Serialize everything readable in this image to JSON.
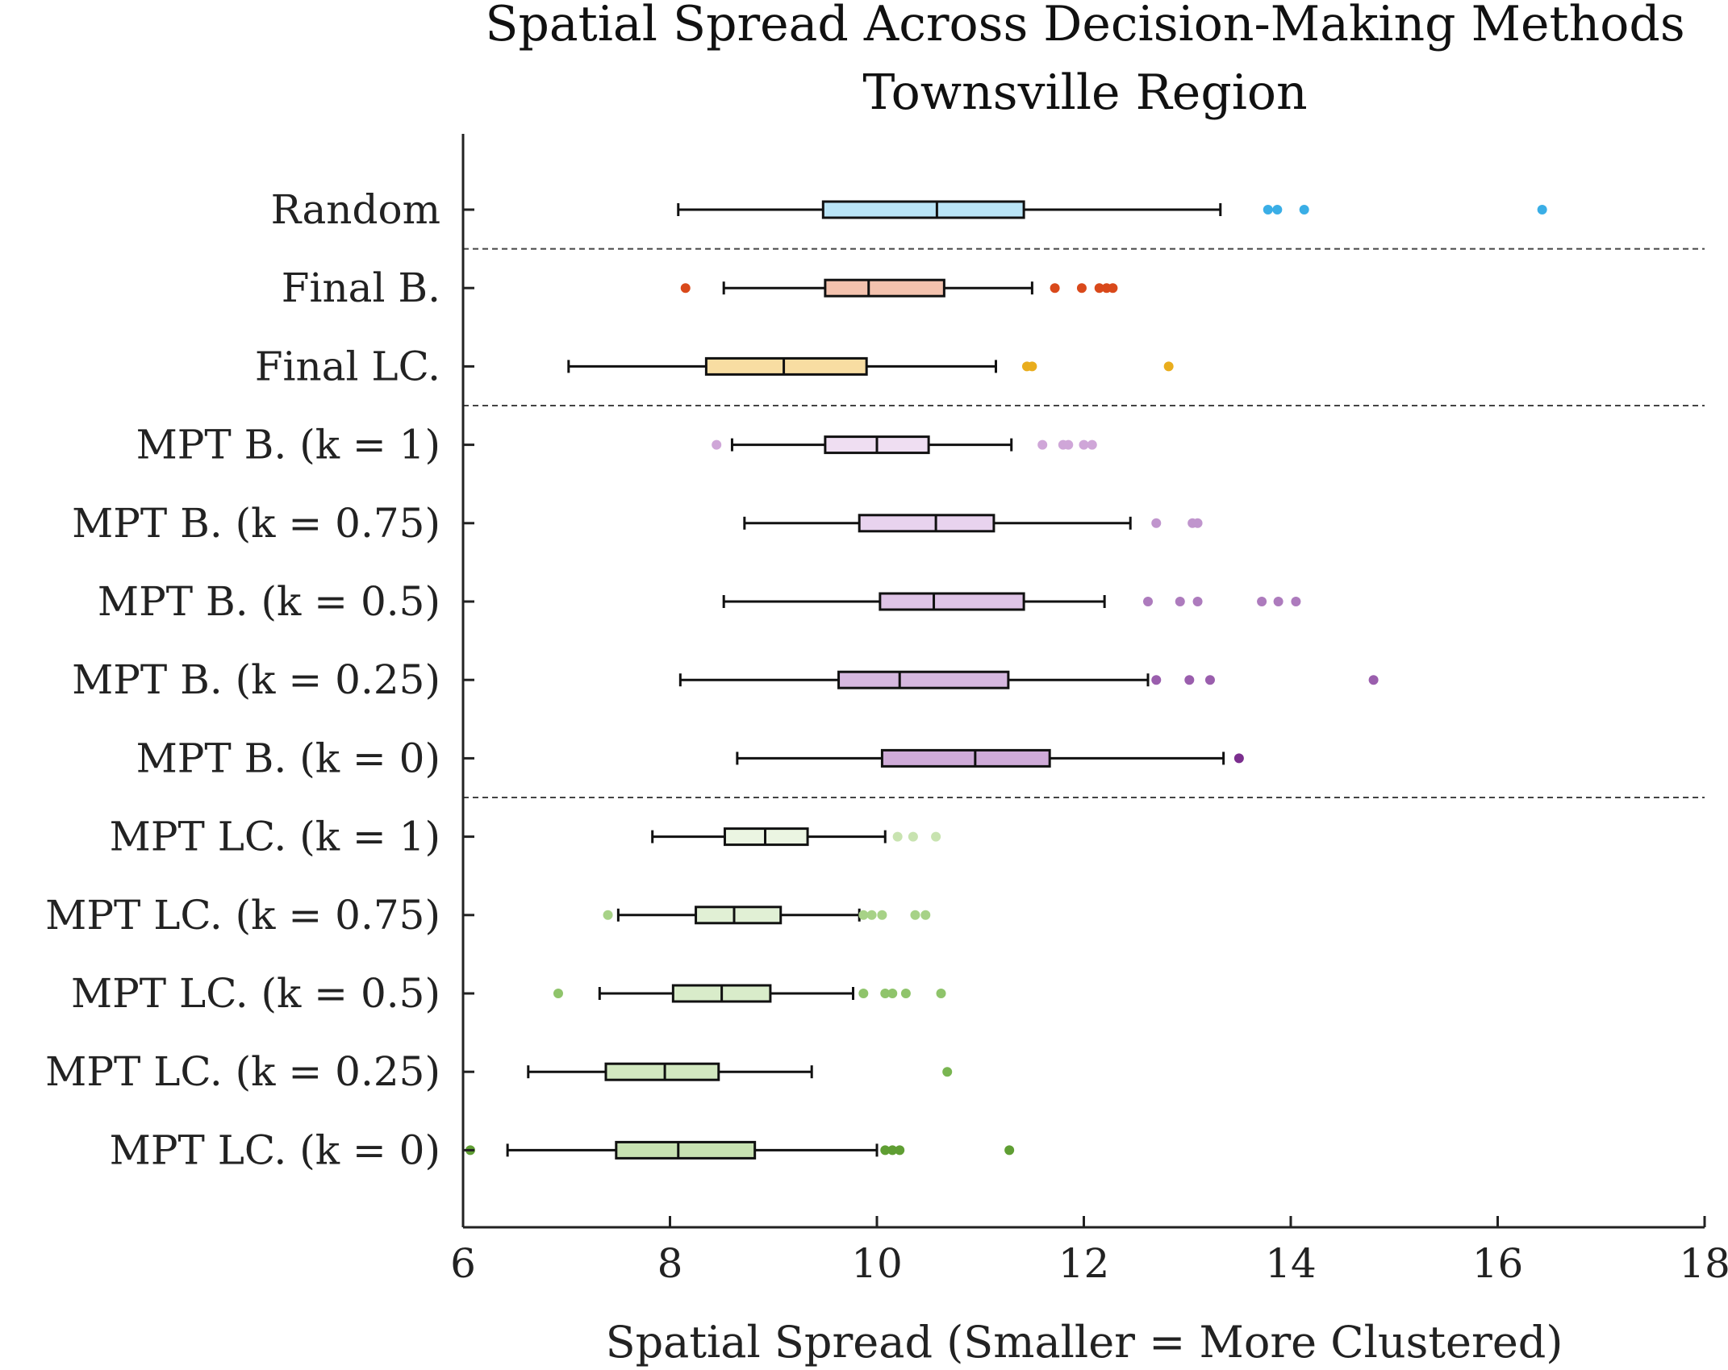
{
  "chart_data": {
    "type": "boxplot",
    "title": "Spatial Spread Across Decision-Making Methods",
    "subtitle": "Townsville Region",
    "xlabel": "Spatial Spread (Smaller = More Clustered)",
    "xlim": [
      6,
      18
    ],
    "xticks": [
      "6",
      "8",
      "10",
      "12",
      "14",
      "16",
      "18"
    ],
    "orientation": "horizontal",
    "grid": false,
    "group_separators_after": [
      "Random",
      "Final LC.",
      "MPT B. (k = 0)"
    ],
    "series": [
      {
        "category": "Random",
        "color": "#3aaee6",
        "fill": "#b9e4f6",
        "whisker_low": 8.08,
        "q1": 9.48,
        "median": 10.58,
        "q3": 11.42,
        "whisker_high": 13.32,
        "outliers": [
          13.78,
          13.87,
          14.13,
          16.43
        ]
      },
      {
        "category": "Final B.",
        "color": "#d9491b",
        "fill": "#f3c2ae",
        "whisker_low": 8.52,
        "q1": 9.5,
        "median": 9.92,
        "q3": 10.65,
        "whisker_high": 11.5,
        "outliers": [
          8.15,
          11.72,
          11.98,
          12.15,
          12.22,
          12.28
        ]
      },
      {
        "category": "Final LC.",
        "color": "#e9ad1d",
        "fill": "#f8ddA2",
        "whisker_low": 7.02,
        "q1": 8.35,
        "median": 9.1,
        "q3": 9.9,
        "whisker_high": 11.15,
        "outliers": [
          11.45,
          11.5,
          12.82
        ]
      },
      {
        "category": "MPT B. (k = 1)",
        "color": "#cfa6d8",
        "fill": "#efdef2",
        "whisker_low": 8.6,
        "q1": 9.5,
        "median": 10.0,
        "q3": 10.5,
        "whisker_high": 11.3,
        "outliers": [
          8.45,
          11.6,
          11.8,
          11.85,
          12.0,
          12.08
        ]
      },
      {
        "category": "MPT B. (k = 0.75)",
        "color": "#c095cd",
        "fill": "#e8d3ee",
        "whisker_low": 8.72,
        "q1": 9.83,
        "median": 10.57,
        "q3": 11.13,
        "whisker_high": 12.45,
        "outliers": [
          12.7,
          13.05,
          13.1
        ]
      },
      {
        "category": "MPT B. (k = 0.5)",
        "color": "#ad7bbd",
        "fill": "#dfc4e7",
        "whisker_low": 8.52,
        "q1": 10.03,
        "median": 10.55,
        "q3": 11.42,
        "whisker_high": 12.2,
        "outliers": [
          12.62,
          12.93,
          13.1,
          13.72,
          13.88,
          14.05
        ]
      },
      {
        "category": "MPT B. (k = 0.25)",
        "color": "#9a5ead",
        "fill": "#d6b8df",
        "whisker_low": 8.1,
        "q1": 9.63,
        "median": 10.22,
        "q3": 11.27,
        "whisker_high": 12.62,
        "outliers": [
          12.7,
          13.02,
          13.22,
          14.8
        ]
      },
      {
        "category": "MPT B. (k = 0)",
        "color": "#7b2e8e",
        "fill": "#cfabd8",
        "whisker_low": 8.65,
        "q1": 10.05,
        "median": 10.95,
        "q3": 11.67,
        "whisker_high": 13.35,
        "outliers": [
          13.5
        ]
      },
      {
        "category": "MPT LC. (k = 1)",
        "color": "#c8e3b0",
        "fill": "#ebf5e2",
        "whisker_low": 7.83,
        "q1": 8.53,
        "median": 8.92,
        "q3": 9.33,
        "whisker_high": 10.08,
        "outliers": [
          10.2,
          10.35,
          10.57
        ]
      },
      {
        "category": "MPT LC. (k = 0.75)",
        "color": "#a7d287",
        "fill": "#e1f0d5",
        "whisker_low": 7.5,
        "q1": 8.25,
        "median": 8.62,
        "q3": 9.07,
        "whisker_high": 9.83,
        "outliers": [
          7.4,
          9.87,
          9.95,
          10.05,
          10.37,
          10.47
        ]
      },
      {
        "category": "MPT LC. (k = 0.5)",
        "color": "#8fc46b",
        "fill": "#d9ecca",
        "whisker_low": 7.32,
        "q1": 8.03,
        "median": 8.5,
        "q3": 8.97,
        "whisker_high": 9.77,
        "outliers": [
          6.92,
          9.87,
          10.08,
          10.15,
          10.28,
          10.62
        ]
      },
      {
        "category": "MPT LC. (k = 0.25)",
        "color": "#79b551",
        "fill": "#d2e8c0",
        "whisker_low": 6.63,
        "q1": 7.38,
        "median": 7.95,
        "q3": 8.47,
        "whisker_high": 9.37,
        "outliers": [
          10.68
        ]
      },
      {
        "category": "MPT LC. (k = 0)",
        "color": "#5f9e33",
        "fill": "#c8e2b2",
        "whisker_low": 6.43,
        "q1": 7.48,
        "median": 8.08,
        "q3": 8.82,
        "whisker_high": 10.0,
        "outliers": [
          6.07,
          10.08,
          10.15,
          10.22,
          11.28
        ]
      }
    ]
  }
}
